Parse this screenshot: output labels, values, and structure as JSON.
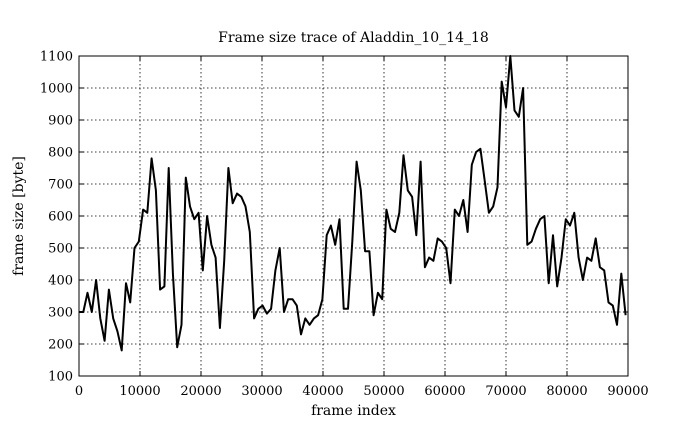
{
  "chart_data": {
    "type": "line",
    "title": "Frame size trace of Aladdin_10_14_18",
    "xlabel": "frame index",
    "ylabel": "frame size [byte]",
    "xlim": [
      0,
      90000
    ],
    "ylim": [
      100,
      1100
    ],
    "xticks": [
      0,
      10000,
      20000,
      30000,
      40000,
      50000,
      60000,
      70000,
      80000,
      90000
    ],
    "yticks": [
      100,
      200,
      300,
      400,
      500,
      600,
      700,
      800,
      900,
      1000,
      1100
    ],
    "grid": true,
    "grid_style": "dotted",
    "line_color": "#000000",
    "series": [
      {
        "x": [
          0,
          700,
          1400,
          2100,
          2800,
          3500,
          4200,
          4900,
          5600,
          6300,
          7000,
          7700,
          8400,
          9100,
          9800,
          10500,
          11200,
          11900,
          12600,
          13300,
          14000,
          14700,
          15400,
          16100,
          16800,
          17500,
          18200,
          18900,
          19600,
          20300,
          21000,
          21700,
          22400,
          23100,
          23800,
          24500,
          25200,
          25900,
          26600,
          27300,
          28000,
          28700,
          29400,
          30100,
          30800,
          31500,
          32200,
          32900,
          33600,
          34300,
          35000,
          35700,
          36400,
          37100,
          37800,
          38500,
          39200,
          39900,
          40600,
          41300,
          42000,
          42700,
          43400,
          44100,
          44800,
          45500,
          46200,
          46900,
          47600,
          48300,
          49000,
          49700,
          50400,
          51100,
          51800,
          52500,
          53200,
          53900,
          54600,
          55300,
          56000,
          56700,
          57400,
          58100,
          58800,
          59500,
          60200,
          60900,
          61600,
          62300,
          63000,
          63700,
          64400,
          65100,
          65800,
          66500,
          67200,
          67900,
          68600,
          69300,
          70000,
          70700,
          71400,
          72100,
          72800,
          73500,
          74200,
          74900,
          75600,
          76300,
          77000,
          77700,
          78400,
          79100,
          79800,
          80500,
          81200,
          81900,
          82600,
          83300,
          84000,
          84700,
          85400,
          86100,
          86800,
          87500,
          88200,
          88900,
          89600
        ],
        "y": [
          300,
          300,
          360,
          300,
          400,
          280,
          210,
          370,
          280,
          240,
          180,
          390,
          330,
          500,
          520,
          620,
          610,
          780,
          680,
          370,
          380,
          750,
          420,
          190,
          260,
          720,
          630,
          590,
          610,
          430,
          600,
          510,
          470,
          250,
          460,
          750,
          640,
          670,
          660,
          630,
          550,
          280,
          310,
          320,
          295,
          310,
          430,
          500,
          300,
          340,
          340,
          320,
          230,
          280,
          260,
          280,
          290,
          340,
          540,
          570,
          510,
          590,
          310,
          310,
          520,
          770,
          680,
          490,
          490,
          290,
          360,
          340,
          620,
          560,
          550,
          610,
          790,
          680,
          660,
          540,
          770,
          440,
          470,
          460,
          530,
          520,
          500,
          390,
          620,
          600,
          650,
          550,
          760,
          800,
          810,
          710,
          610,
          630,
          690,
          1020,
          940,
          1100,
          930,
          910,
          1000,
          510,
          520,
          560,
          590,
          600,
          390,
          540,
          380,
          470,
          590,
          570,
          610,
          470,
          400,
          470,
          460,
          530,
          440,
          430,
          330,
          320,
          260,
          420,
          290
        ]
      }
    ]
  }
}
